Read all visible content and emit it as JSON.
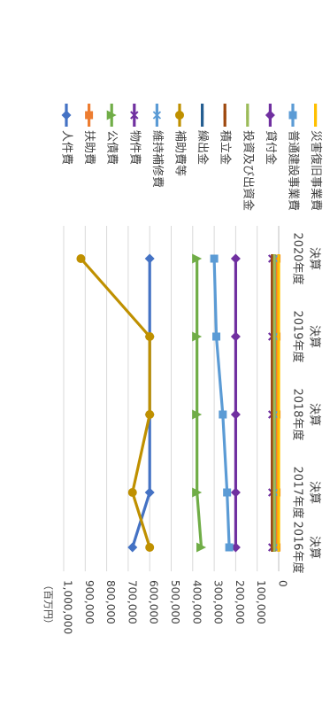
{
  "chart_data": {
    "type": "line",
    "orientation": "rotated-90-clockwise",
    "ylabel": "（百万円）",
    "ylim": [
      0,
      1000000
    ],
    "yticks": [
      {
        "value": 0,
        "label": "0"
      },
      {
        "value": 100000,
        "label": "100,000"
      },
      {
        "value": 200000,
        "label": "200,000"
      },
      {
        "value": 300000,
        "label": "300,000"
      },
      {
        "value": 400000,
        "label": "400,000"
      },
      {
        "value": 500000,
        "label": "500,000"
      },
      {
        "value": 600000,
        "label": "600,000"
      },
      {
        "value": 700000,
        "label": "700,000"
      },
      {
        "value": 800000,
        "label": "800,000"
      },
      {
        "value": 900000,
        "label": "900,000"
      },
      {
        "value": 1000000,
        "label": "1,000,000"
      }
    ],
    "categories": [
      {
        "line1": "2016年度",
        "line2": "決算"
      },
      {
        "line1": "2017年度",
        "line2": "決算"
      },
      {
        "line1": "2018年度",
        "line2": "決算"
      },
      {
        "line1": "2019年度",
        "line2": "決算"
      },
      {
        "line1": "2020年度",
        "line2": "決算"
      }
    ],
    "grid": true,
    "legend_position": "right",
    "series": [
      {
        "name": "人件費",
        "color": "#4472C4",
        "marker": "diamond",
        "values": [
          680000,
          600000,
          600000,
          600000,
          600000
        ]
      },
      {
        "name": "扶助費",
        "color": "#ED7D31",
        "marker": "square",
        "values": [
          10000,
          10000,
          10000,
          10000,
          10000
        ]
      },
      {
        "name": "公債費",
        "color": "#70AD47",
        "marker": "triangle",
        "values": [
          360000,
          380000,
          380000,
          380000,
          380000
        ]
      },
      {
        "name": "物件費",
        "color": "#7030A0",
        "marker": "x",
        "values": [
          30000,
          30000,
          30000,
          30000,
          30000
        ]
      },
      {
        "name": "維持補修費",
        "color": "#5B9BD5",
        "marker": "star",
        "values": [
          20000,
          20000,
          20000,
          20000,
          20000
        ]
      },
      {
        "name": "補助費等",
        "color": "#BF9000",
        "marker": "circle",
        "values": [
          600000,
          680000,
          600000,
          600000,
          920000
        ]
      },
      {
        "name": "繰出金",
        "color": "#255E91",
        "marker": "dash",
        "values": [
          20000,
          20000,
          20000,
          20000,
          20000
        ]
      },
      {
        "name": "積立金",
        "color": "#9E480E",
        "marker": "dash",
        "values": [
          30000,
          30000,
          30000,
          30000,
          30000
        ]
      },
      {
        "name": "投資及び出資金",
        "color": "#9BBB59",
        "marker": "dash",
        "values": [
          20000,
          20000,
          20000,
          20000,
          20000
        ]
      },
      {
        "name": "貸付金",
        "color": "#7030A0",
        "marker": "diamond",
        "values": [
          200000,
          200000,
          200000,
          200000,
          200000
        ]
      },
      {
        "name": "普通建設事業費",
        "color": "#5B9BD5",
        "marker": "square",
        "values": [
          230000,
          240000,
          260000,
          290000,
          300000
        ]
      },
      {
        "name": "災害復旧事業費",
        "color": "#FFC000",
        "marker": "dash",
        "values": [
          0,
          0,
          0,
          0,
          0
        ]
      }
    ]
  }
}
